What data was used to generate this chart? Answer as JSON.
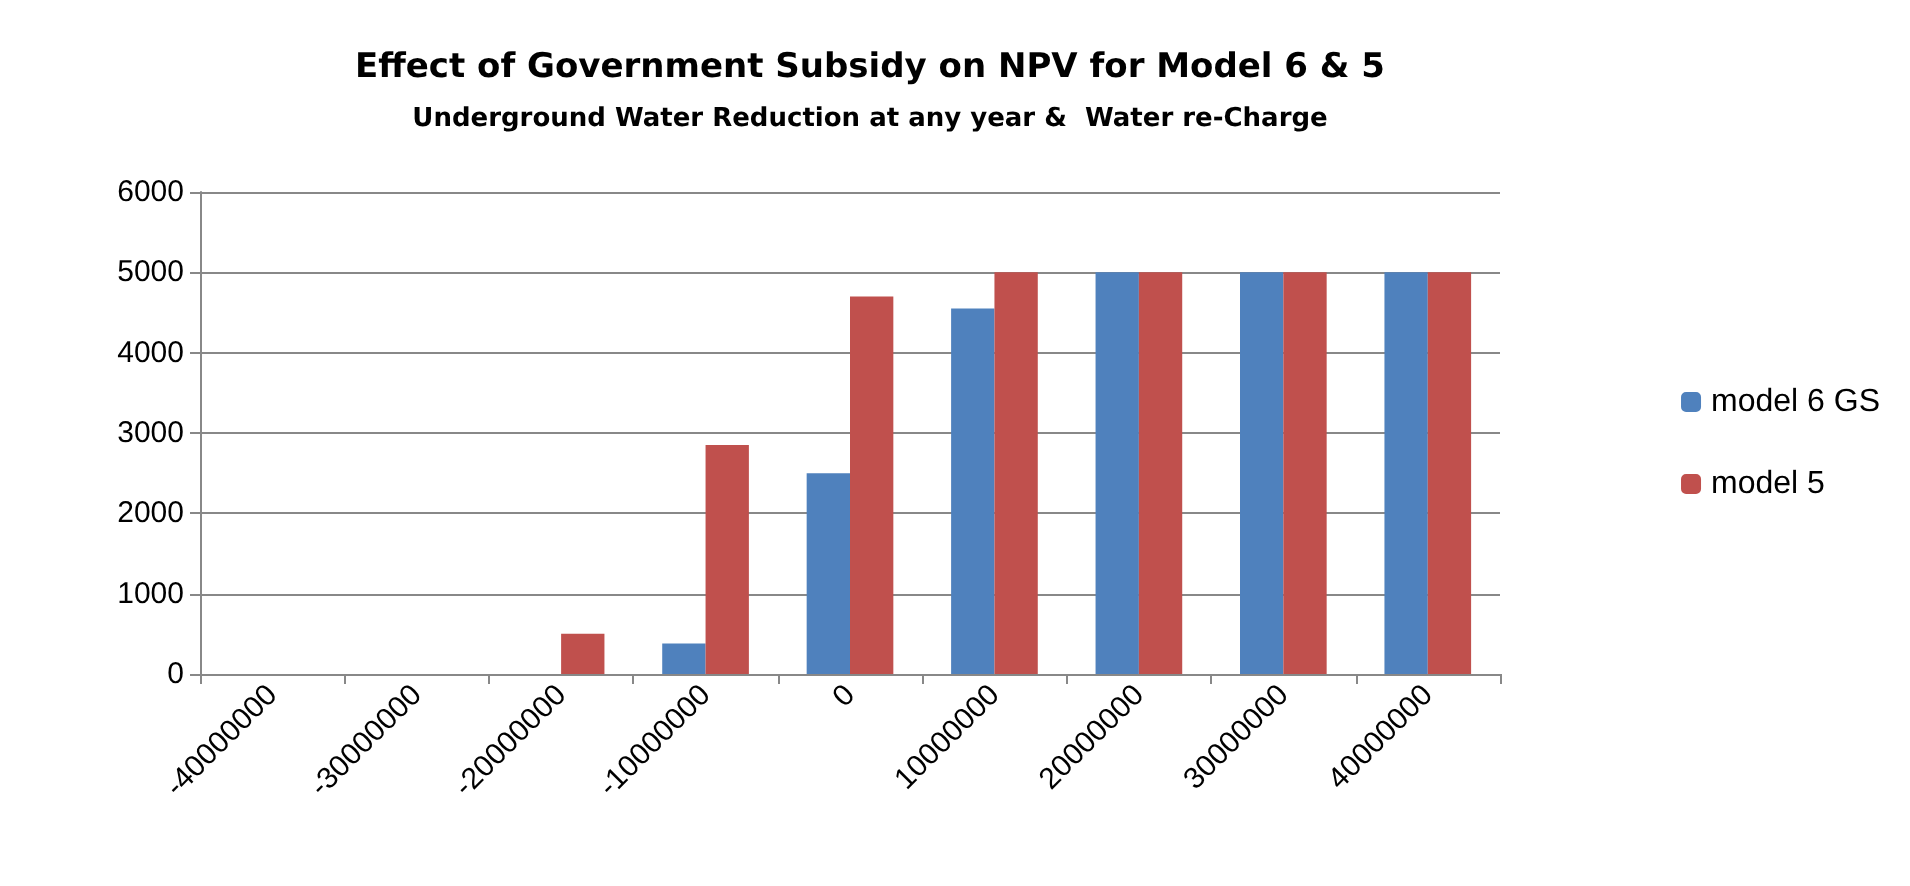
{
  "chart_data": {
    "type": "bar",
    "title": "Effect of Government Subsidy on NPV for Model 6 & 5",
    "subtitle": "Underground Water Reduction at any year &  Water re-Charge",
    "categories": [
      "-40000000",
      "-30000000",
      "-20000000",
      "-10000000",
      "0",
      "10000000",
      "20000000",
      "30000000",
      "40000000"
    ],
    "series": [
      {
        "name": "model 6 GS",
        "color": "#4f81bd",
        "values": [
          0,
          0,
          0,
          380,
          2500,
          4550,
          5000,
          5000,
          5000
        ]
      },
      {
        "name": "model 5",
        "color": "#c0504d",
        "values": [
          0,
          0,
          500,
          2850,
          4700,
          5000,
          5000,
          5000,
          5000
        ]
      }
    ],
    "ylim": [
      0,
      6000
    ],
    "yticks": [
      0,
      1000,
      2000,
      3000,
      4000,
      5000,
      6000
    ],
    "grid": "y",
    "legend": "right"
  }
}
